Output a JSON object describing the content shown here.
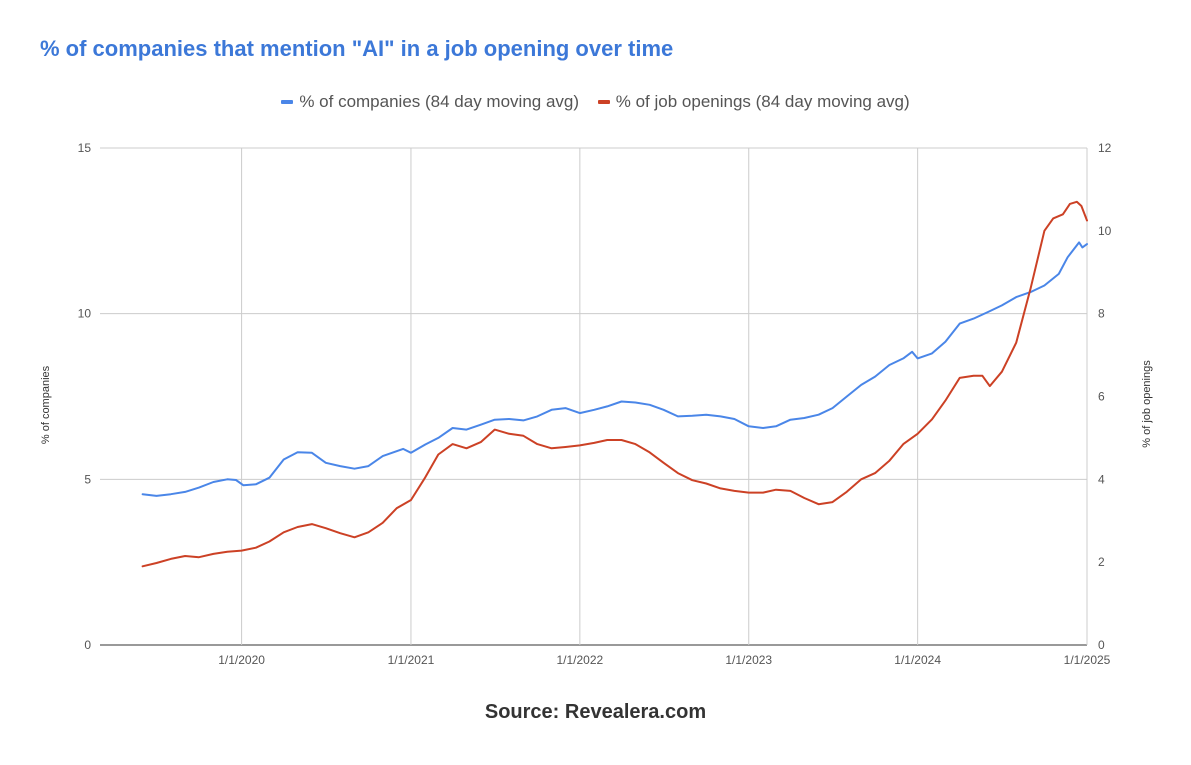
{
  "chart_data": {
    "type": "line",
    "title": "% of companies that mention \"AI\" in a job opening over time",
    "source": "Source: Revealera.com",
    "legend_position": "top",
    "grid": true,
    "x_ticks": [
      "2020-01-01",
      "2021-01-01",
      "2022-01-01",
      "2023-01-01",
      "2024-01-01",
      "2025-01-01"
    ],
    "x_tick_labels": [
      "1/1/2020",
      "1/1/2021",
      "1/1/2022",
      "1/1/2023",
      "1/1/2024",
      "1/1/2025"
    ],
    "xlim": [
      "2019-03-01",
      "2025-01-01"
    ],
    "y_left": {
      "label": "% of companies",
      "lim": [
        0,
        15
      ],
      "ticks": [
        "0",
        "5",
        "10",
        "15"
      ]
    },
    "y_right": {
      "label": "% of job openings",
      "lim": [
        0,
        12
      ],
      "ticks": [
        "0",
        "2",
        "4",
        "6",
        "8",
        "10",
        "12"
      ]
    },
    "series": [
      {
        "name": "% of companies (84 day moving avg)",
        "axis": "left",
        "color": "#4a86e8",
        "points": [
          [
            "2019-06-01",
            4.55
          ],
          [
            "2019-07-01",
            4.5
          ],
          [
            "2019-08-01",
            4.55
          ],
          [
            "2019-09-01",
            4.62
          ],
          [
            "2019-10-01",
            4.75
          ],
          [
            "2019-11-01",
            4.92
          ],
          [
            "2019-12-01",
            5.0
          ],
          [
            "2019-12-20",
            4.98
          ],
          [
            "2020-01-05",
            4.82
          ],
          [
            "2020-02-01",
            4.85
          ],
          [
            "2020-03-01",
            5.05
          ],
          [
            "2020-04-01",
            5.6
          ],
          [
            "2020-05-01",
            5.82
          ],
          [
            "2020-06-01",
            5.8
          ],
          [
            "2020-07-01",
            5.5
          ],
          [
            "2020-08-01",
            5.4
          ],
          [
            "2020-09-01",
            5.32
          ],
          [
            "2020-10-01",
            5.4
          ],
          [
            "2020-11-01",
            5.7
          ],
          [
            "2020-12-15",
            5.92
          ],
          [
            "2021-01-01",
            5.8
          ],
          [
            "2021-02-01",
            6.05
          ],
          [
            "2021-03-01",
            6.25
          ],
          [
            "2021-04-01",
            6.55
          ],
          [
            "2021-05-01",
            6.5
          ],
          [
            "2021-06-01",
            6.65
          ],
          [
            "2021-07-01",
            6.8
          ],
          [
            "2021-08-01",
            6.82
          ],
          [
            "2021-09-01",
            6.78
          ],
          [
            "2021-10-01",
            6.9
          ],
          [
            "2021-11-01",
            7.1
          ],
          [
            "2021-12-01",
            7.15
          ],
          [
            "2022-01-01",
            7.0
          ],
          [
            "2022-02-01",
            7.1
          ],
          [
            "2022-03-01",
            7.2
          ],
          [
            "2022-04-01",
            7.35
          ],
          [
            "2022-05-01",
            7.32
          ],
          [
            "2022-06-01",
            7.25
          ],
          [
            "2022-07-01",
            7.1
          ],
          [
            "2022-08-01",
            6.9
          ],
          [
            "2022-09-01",
            6.92
          ],
          [
            "2022-10-01",
            6.95
          ],
          [
            "2022-11-01",
            6.9
          ],
          [
            "2022-12-01",
            6.82
          ],
          [
            "2023-01-01",
            6.6
          ],
          [
            "2023-02-01",
            6.55
          ],
          [
            "2023-03-01",
            6.6
          ],
          [
            "2023-04-01",
            6.8
          ],
          [
            "2023-05-01",
            6.85
          ],
          [
            "2023-06-01",
            6.95
          ],
          [
            "2023-07-01",
            7.15
          ],
          [
            "2023-08-01",
            7.5
          ],
          [
            "2023-09-01",
            7.85
          ],
          [
            "2023-10-01",
            8.1
          ],
          [
            "2023-11-01",
            8.45
          ],
          [
            "2023-12-01",
            8.65
          ],
          [
            "2023-12-20",
            8.85
          ],
          [
            "2024-01-01",
            8.65
          ],
          [
            "2024-02-01",
            8.8
          ],
          [
            "2024-03-01",
            9.15
          ],
          [
            "2024-04-01",
            9.7
          ],
          [
            "2024-05-01",
            9.85
          ],
          [
            "2024-06-01",
            10.05
          ],
          [
            "2024-07-01",
            10.25
          ],
          [
            "2024-08-01",
            10.5
          ],
          [
            "2024-09-01",
            10.65
          ],
          [
            "2024-10-01",
            10.85
          ],
          [
            "2024-11-01",
            11.2
          ],
          [
            "2024-11-20",
            11.7
          ],
          [
            "2024-12-15",
            12.15
          ],
          [
            "2024-12-22",
            12.0
          ],
          [
            "2025-01-01",
            12.1
          ]
        ]
      },
      {
        "name": "% of job openings (84 day moving avg)",
        "axis": "right",
        "color": "#cc4125",
        "points": [
          [
            "2019-06-01",
            1.9
          ],
          [
            "2019-07-01",
            1.98
          ],
          [
            "2019-08-01",
            2.08
          ],
          [
            "2019-09-01",
            2.15
          ],
          [
            "2019-10-01",
            2.12
          ],
          [
            "2019-11-01",
            2.2
          ],
          [
            "2019-12-01",
            2.25
          ],
          [
            "2020-01-01",
            2.28
          ],
          [
            "2020-02-01",
            2.35
          ],
          [
            "2020-03-01",
            2.5
          ],
          [
            "2020-04-01",
            2.72
          ],
          [
            "2020-05-01",
            2.85
          ],
          [
            "2020-06-01",
            2.92
          ],
          [
            "2020-07-01",
            2.82
          ],
          [
            "2020-08-01",
            2.7
          ],
          [
            "2020-09-01",
            2.6
          ],
          [
            "2020-10-01",
            2.72
          ],
          [
            "2020-11-01",
            2.95
          ],
          [
            "2020-12-01",
            3.3
          ],
          [
            "2021-01-01",
            3.5
          ],
          [
            "2021-02-01",
            4.05
          ],
          [
            "2021-03-01",
            4.6
          ],
          [
            "2021-04-01",
            4.85
          ],
          [
            "2021-05-01",
            4.75
          ],
          [
            "2021-06-01",
            4.9
          ],
          [
            "2021-07-01",
            5.2
          ],
          [
            "2021-08-01",
            5.1
          ],
          [
            "2021-09-01",
            5.05
          ],
          [
            "2021-10-01",
            4.85
          ],
          [
            "2021-11-01",
            4.75
          ],
          [
            "2021-12-01",
            4.78
          ],
          [
            "2022-01-01",
            4.82
          ],
          [
            "2022-02-01",
            4.88
          ],
          [
            "2022-03-01",
            4.95
          ],
          [
            "2022-04-01",
            4.95
          ],
          [
            "2022-05-01",
            4.85
          ],
          [
            "2022-06-01",
            4.65
          ],
          [
            "2022-07-01",
            4.4
          ],
          [
            "2022-08-01",
            4.15
          ],
          [
            "2022-09-01",
            3.98
          ],
          [
            "2022-10-01",
            3.9
          ],
          [
            "2022-11-01",
            3.78
          ],
          [
            "2022-12-01",
            3.72
          ],
          [
            "2023-01-01",
            3.68
          ],
          [
            "2023-02-01",
            3.68
          ],
          [
            "2023-03-01",
            3.75
          ],
          [
            "2023-04-01",
            3.72
          ],
          [
            "2023-05-01",
            3.55
          ],
          [
            "2023-06-01",
            3.4
          ],
          [
            "2023-07-01",
            3.45
          ],
          [
            "2023-08-01",
            3.7
          ],
          [
            "2023-09-01",
            4.0
          ],
          [
            "2023-10-01",
            4.15
          ],
          [
            "2023-11-01",
            4.45
          ],
          [
            "2023-12-01",
            4.85
          ],
          [
            "2024-01-01",
            5.1
          ],
          [
            "2024-02-01",
            5.45
          ],
          [
            "2024-03-01",
            5.9
          ],
          [
            "2024-04-01",
            6.45
          ],
          [
            "2024-05-01",
            6.5
          ],
          [
            "2024-05-20",
            6.5
          ],
          [
            "2024-06-05",
            6.25
          ],
          [
            "2024-07-01",
            6.6
          ],
          [
            "2024-08-01",
            7.3
          ],
          [
            "2024-09-01",
            8.6
          ],
          [
            "2024-10-01",
            10.0
          ],
          [
            "2024-10-20",
            10.3
          ],
          [
            "2024-11-10",
            10.4
          ],
          [
            "2024-11-25",
            10.65
          ],
          [
            "2024-12-10",
            10.7
          ],
          [
            "2024-12-20",
            10.6
          ],
          [
            "2025-01-01",
            10.25
          ]
        ]
      }
    ]
  }
}
